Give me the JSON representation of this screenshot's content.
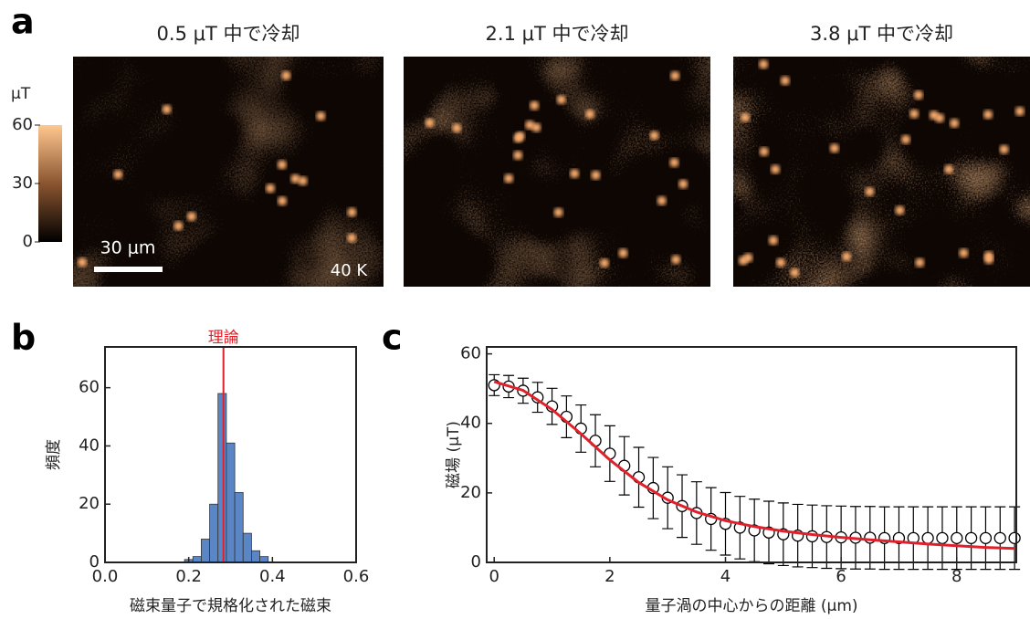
{
  "panel_a": {
    "label": "a",
    "titles": [
      "0.5 μT 中で冷却",
      "2.1 μT 中で冷却",
      "3.8 μT 中で冷却"
    ],
    "colorbar": {
      "unit": "μT",
      "lim": [
        0,
        60
      ],
      "ticks": [
        0,
        30,
        60
      ]
    },
    "scale_bar": "30 μm",
    "temperature": "40 K"
  },
  "chart_data": [
    {
      "type": "histogram",
      "panel_label": "b",
      "xlabel": "磁束量子で規格化された磁束",
      "ylabel": "頻度",
      "bins": [
        0.19,
        0.21,
        0.23,
        0.25,
        0.27,
        0.29,
        0.31,
        0.33,
        0.35,
        0.37,
        0.39
      ],
      "values": [
        1,
        2,
        8,
        20,
        58,
        41,
        24,
        10,
        4,
        2
      ],
      "color": "#5b86c5",
      "xlim": [
        0,
        0.6
      ],
      "ylim": [
        0,
        74
      ],
      "xticks": [
        {
          "value": 0,
          "label": "0.0"
        },
        0.2,
        0.4,
        0.6
      ],
      "yticks": [
        0,
        20,
        40,
        60
      ],
      "annotation": {
        "text": "理論",
        "x": 0.283,
        "color": "#e0202a"
      }
    },
    {
      "type": "line",
      "panel_label": "c",
      "xlabel": "量子渦の中心からの距離 (μm)",
      "ylabel": "磁場 (μT)",
      "xlim": [
        -0.13,
        9.03
      ],
      "ylim": [
        0,
        62
      ],
      "xticks": [
        0,
        2,
        4,
        6,
        8
      ],
      "yticks": [
        0,
        20,
        40,
        60
      ],
      "series": [
        {
          "marker": "circle",
          "color": "#000000",
          "x": [
            0,
            0.25,
            0.5,
            0.75,
            1,
            1.25,
            1.5,
            1.75,
            2,
            2.25,
            2.5,
            2.75,
            3,
            3.25,
            3.5,
            3.75,
            4,
            4.25,
            4.5,
            4.75,
            5,
            5.25,
            5.5,
            5.75,
            6,
            6.25,
            6.5,
            6.75,
            7,
            7.25,
            7.5,
            7.75,
            8,
            8.25,
            8.5,
            8.75,
            9
          ],
          "values": [
            51,
            50.6,
            49.4,
            47.5,
            44.9,
            41.9,
            38.5,
            35,
            31.3,
            27.8,
            24.5,
            21.4,
            18.6,
            16.2,
            14.2,
            12.5,
            11.1,
            10,
            9.2,
            8.6,
            8.1,
            7.7,
            7.5,
            7.3,
            7.2,
            7.1,
            7.1,
            7,
            7,
            7,
            7,
            7,
            7,
            7,
            7,
            7,
            7
          ],
          "errors": [
            3,
            3.2,
            3.6,
            4.3,
            5.2,
            6,
            6.8,
            7.5,
            8,
            8.4,
            8.6,
            8.8,
            8.9,
            9,
            9,
            9,
            9,
            9,
            9,
            9,
            9,
            9,
            9,
            9,
            9,
            9,
            9,
            9,
            9,
            9,
            9,
            9,
            9,
            9,
            9,
            9,
            9
          ]
        },
        {
          "marker": "none",
          "color": "#e0202a",
          "x": [
            0,
            0.5,
            1,
            1.5,
            2,
            2.5,
            3,
            3.5,
            4,
            4.5,
            5,
            5.5,
            6,
            6.5,
            7,
            7.5,
            8,
            8.5,
            9
          ],
          "values": [
            52,
            49.5,
            44,
            37,
            29.5,
            23,
            18,
            14.5,
            12,
            10.3,
            9,
            8,
            7.2,
            6.5,
            5.9,
            5.3,
            4.8,
            4.3,
            4
          ]
        }
      ]
    }
  ]
}
